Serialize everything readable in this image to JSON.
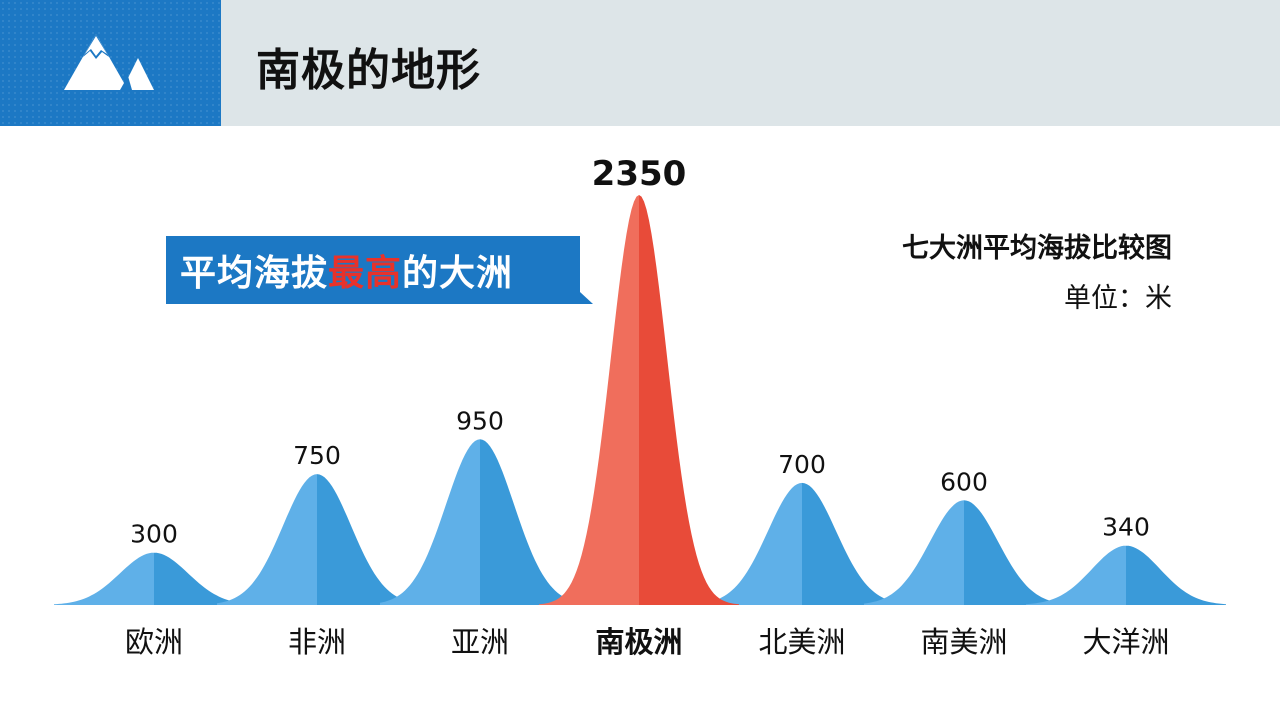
{
  "header": {
    "title": "南极的地形",
    "icon": "mountain-icon",
    "accent_color": "#1c78c4",
    "bar_color": "#dde5e8"
  },
  "callout": {
    "text_before": "平均海拔",
    "text_highlight": "最高",
    "text_after": "的大洲",
    "background": "#1c78c4",
    "highlight_color": "#e8322a"
  },
  "chart_data": {
    "type": "area",
    "title": "七大洲平均海拔比较图",
    "unit_label": "单位：米",
    "categories": [
      "欧洲",
      "非洲",
      "亚洲",
      "南极洲",
      "北美洲",
      "南美洲",
      "大洋洲"
    ],
    "values": [
      300,
      750,
      950,
      2350,
      700,
      600,
      340
    ],
    "value_labels": [
      "300",
      "750",
      "950",
      "2350",
      "700",
      "600",
      "340"
    ],
    "highlight_index": 3,
    "colors": {
      "normal_light": "#5fb0e8",
      "normal_dark": "#3a9ad9",
      "highlight_light": "#f06e5c",
      "highlight_dark": "#e84b39"
    },
    "grid": false,
    "legend": "top-right"
  }
}
